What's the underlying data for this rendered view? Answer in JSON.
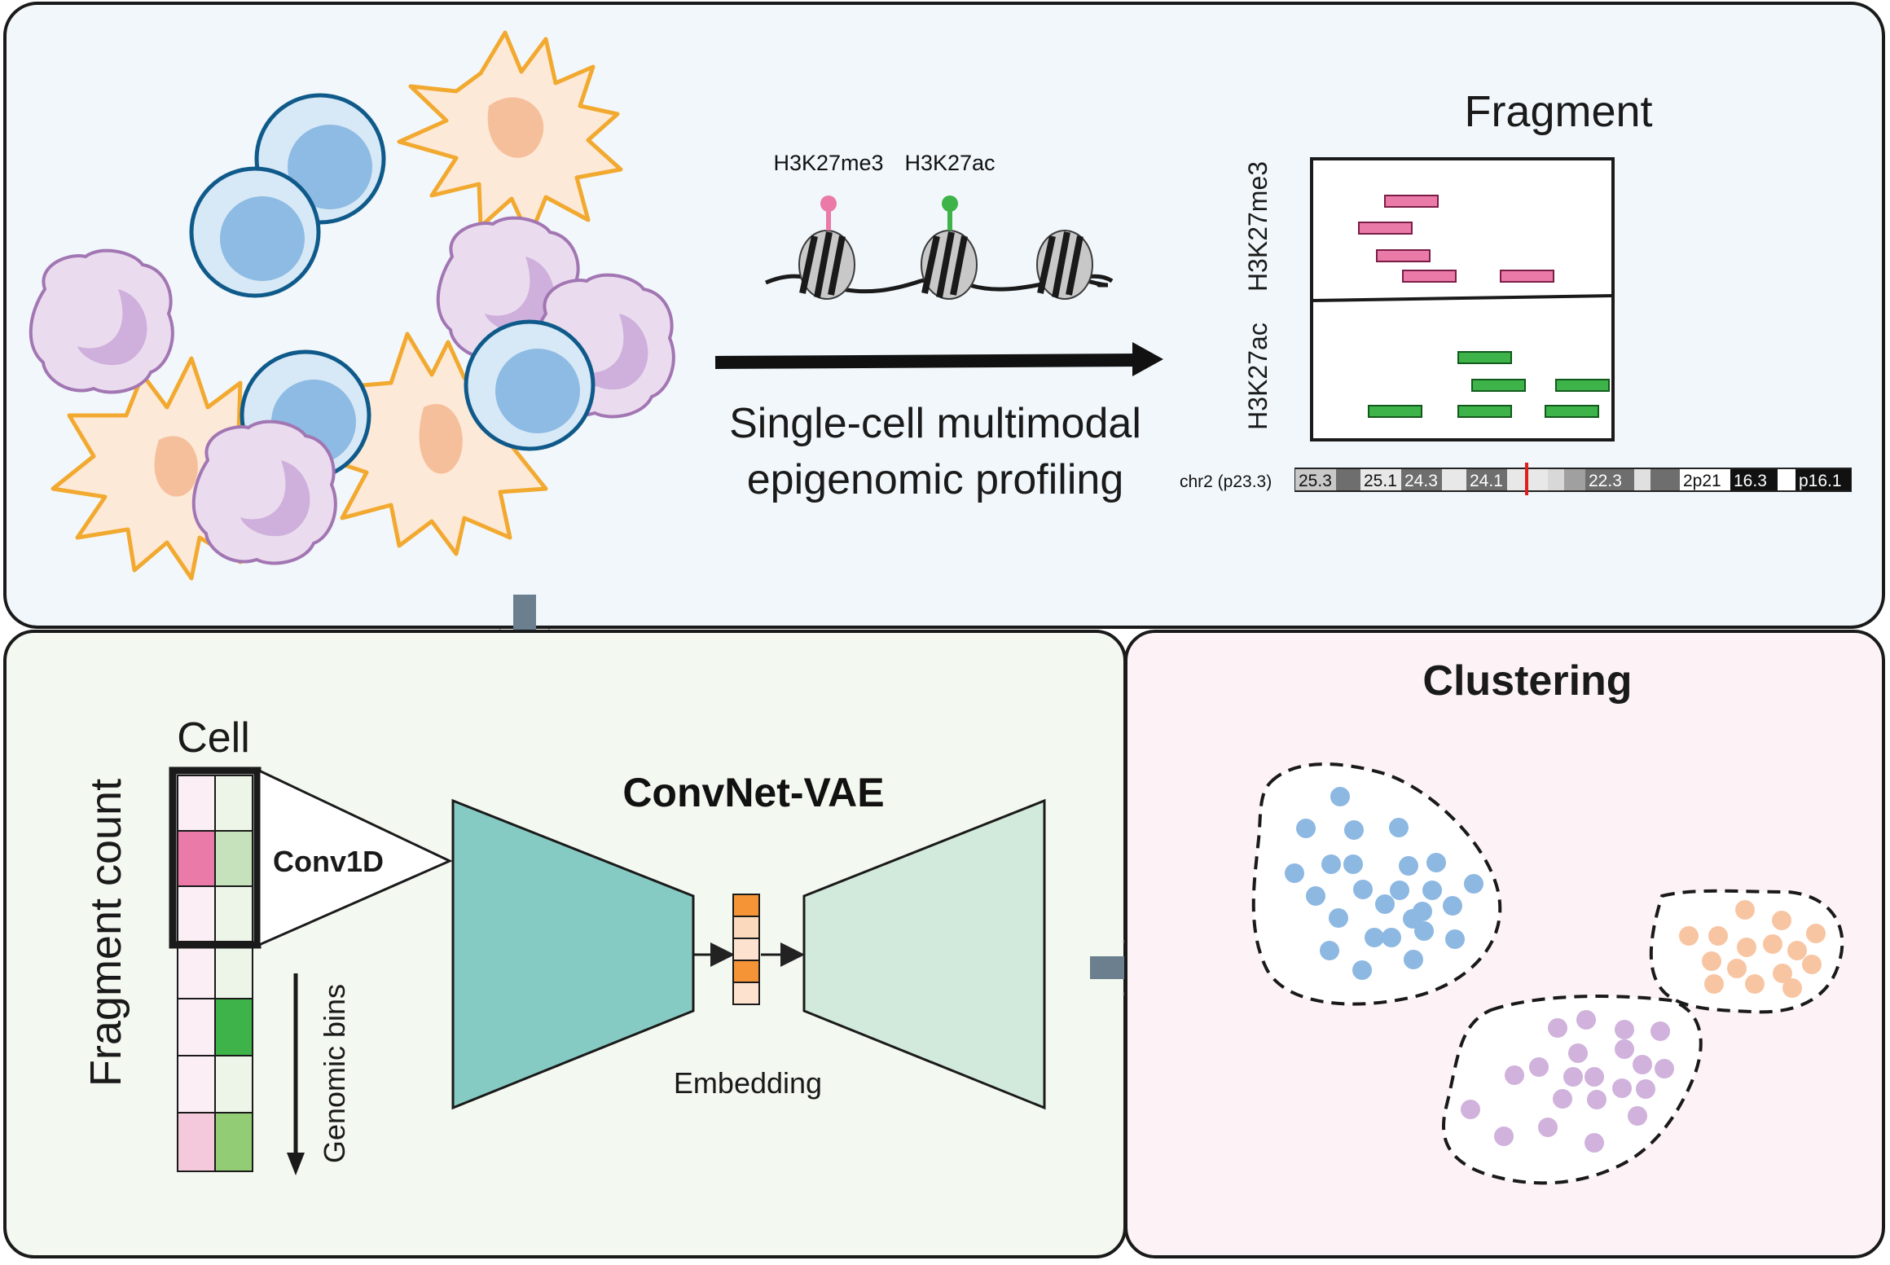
{
  "top": {
    "mark_labels": [
      "H3K27me3",
      "H3K27ac"
    ],
    "process_label_line1": "Single-cell multimodal",
    "process_label_line2": "epigenomic profiling",
    "fragment_title": "Fragment",
    "track_labels": [
      "H3K27me3",
      "H3K27ac"
    ],
    "chromosome": {
      "label": "chr2 (p23.3)",
      "bands": [
        "25.3",
        "25.1",
        "24.3",
        "24.1",
        "22.3",
        "2p21",
        "16.3",
        "p16.1"
      ]
    }
  },
  "model": {
    "cell_label": "Cell",
    "y_label": "Fragment count",
    "conv_label": "Conv1D",
    "title": "ConvNet-VAE",
    "embedding_label": "Embedding",
    "bins_label": "Genomic bins"
  },
  "clustering": {
    "title": "Clustering"
  },
  "colors": {
    "top_bg": "#f1f7fb",
    "model_bg": "#f3f8f0",
    "cluster_bg": "#fdf3f7",
    "h3k27me3": "#ea7aa8",
    "h3k27ac": "#3db349",
    "encoder": "#86cbc3",
    "decoder": "#d2eadc",
    "embedding": "#f59436",
    "arrow": "#6b7f8e",
    "cluster_blue": "#8db8e2",
    "cluster_orange": "#f8c5a3",
    "cluster_purple": "#d0b2dc"
  },
  "icons": [
    "t-cell-icon",
    "dendritic-cell-icon",
    "macrophage-icon",
    "nucleosome-icon"
  ]
}
